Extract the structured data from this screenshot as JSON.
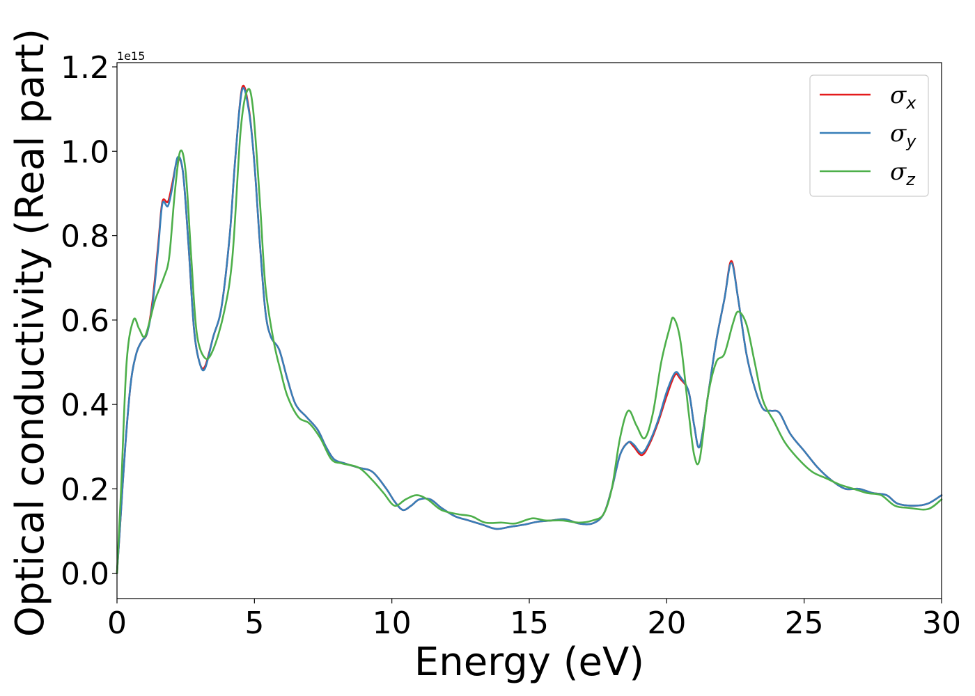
{
  "chart_data": {
    "type": "line",
    "title": "",
    "xlabel": "Energy (eV)",
    "ylabel": "Optical conductivity (Real part)",
    "y_offset_text": "1e15",
    "xlim": [
      0,
      30
    ],
    "ylim": [
      -0.06,
      1.21
    ],
    "x_ticks": [
      0,
      5,
      10,
      15,
      20,
      25,
      30
    ],
    "x_tick_labels": [
      "0",
      "5",
      "10",
      "15",
      "20",
      "25",
      "30"
    ],
    "y_ticks": [
      0.0,
      0.2,
      0.4,
      0.6,
      0.8,
      1.0,
      1.2
    ],
    "y_tick_labels": [
      "0.0",
      "0.2",
      "0.4",
      "0.6",
      "0.8",
      "1.0",
      "1.2"
    ],
    "grid": false,
    "legend": {
      "position": "top-right",
      "entries": [
        {
          "symbol": "σ",
          "subscript": "x"
        },
        {
          "symbol": "σ",
          "subscript": "y"
        },
        {
          "symbol": "σ",
          "subscript": "z"
        }
      ]
    },
    "series": [
      {
        "color": "#e41a1c",
        "points": [
          [
            0,
            0
          ],
          [
            0.1,
            0.1
          ],
          [
            0.3,
            0.3
          ],
          [
            0.5,
            0.45
          ],
          [
            0.7,
            0.52
          ],
          [
            0.9,
            0.55
          ],
          [
            1.1,
            0.57
          ],
          [
            1.3,
            0.65
          ],
          [
            1.5,
            0.78
          ],
          [
            1.65,
            0.88
          ],
          [
            1.85,
            0.88
          ],
          [
            2.0,
            0.92
          ],
          [
            2.2,
            0.98
          ],
          [
            2.4,
            0.95
          ],
          [
            2.6,
            0.78
          ],
          [
            2.8,
            0.58
          ],
          [
            3.0,
            0.5
          ],
          [
            3.2,
            0.49
          ],
          [
            3.5,
            0.56
          ],
          [
            3.8,
            0.63
          ],
          [
            4.1,
            0.8
          ],
          [
            4.3,
            0.98
          ],
          [
            4.55,
            1.15
          ],
          [
            4.8,
            1.1
          ],
          [
            5.0,
            0.97
          ],
          [
            5.2,
            0.78
          ],
          [
            5.4,
            0.62
          ],
          [
            5.6,
            0.56
          ],
          [
            5.9,
            0.53
          ],
          [
            6.2,
            0.46
          ],
          [
            6.5,
            0.4
          ],
          [
            6.9,
            0.37
          ],
          [
            7.3,
            0.34
          ],
          [
            7.6,
            0.3
          ],
          [
            7.9,
            0.27
          ],
          [
            8.3,
            0.26
          ],
          [
            8.8,
            0.25
          ],
          [
            9.3,
            0.24
          ],
          [
            9.8,
            0.2
          ],
          [
            10.1,
            0.17
          ],
          [
            10.4,
            0.15
          ],
          [
            10.7,
            0.16
          ],
          [
            11.0,
            0.175
          ],
          [
            11.4,
            0.175
          ],
          [
            11.8,
            0.155
          ],
          [
            12.3,
            0.135
          ],
          [
            12.8,
            0.125
          ],
          [
            13.3,
            0.115
          ],
          [
            13.8,
            0.105
          ],
          [
            14.3,
            0.11
          ],
          [
            14.8,
            0.115
          ],
          [
            15.3,
            0.122
          ],
          [
            15.8,
            0.125
          ],
          [
            16.3,
            0.128
          ],
          [
            16.8,
            0.118
          ],
          [
            17.3,
            0.118
          ],
          [
            17.7,
            0.14
          ],
          [
            18.0,
            0.2
          ],
          [
            18.3,
            0.28
          ],
          [
            18.6,
            0.31
          ],
          [
            18.8,
            0.3
          ],
          [
            19.1,
            0.28
          ],
          [
            19.4,
            0.31
          ],
          [
            19.7,
            0.36
          ],
          [
            20.0,
            0.42
          ],
          [
            20.3,
            0.47
          ],
          [
            20.5,
            0.46
          ],
          [
            20.8,
            0.43
          ],
          [
            21.0,
            0.35
          ],
          [
            21.2,
            0.3
          ],
          [
            21.5,
            0.42
          ],
          [
            21.8,
            0.55
          ],
          [
            22.1,
            0.65
          ],
          [
            22.35,
            0.74
          ],
          [
            22.6,
            0.65
          ],
          [
            22.9,
            0.52
          ],
          [
            23.2,
            0.44
          ],
          [
            23.5,
            0.39
          ],
          [
            23.8,
            0.385
          ],
          [
            24.1,
            0.38
          ],
          [
            24.5,
            0.33
          ],
          [
            25.0,
            0.29
          ],
          [
            25.5,
            0.25
          ],
          [
            26.0,
            0.22
          ],
          [
            26.5,
            0.2
          ],
          [
            27.0,
            0.2
          ],
          [
            27.5,
            0.19
          ],
          [
            28.0,
            0.185
          ],
          [
            28.4,
            0.165
          ],
          [
            29.0,
            0.16
          ],
          [
            29.5,
            0.165
          ],
          [
            30.0,
            0.185
          ]
        ]
      },
      {
        "color": "#377eb8",
        "points": [
          [
            0,
            0
          ],
          [
            0.1,
            0.1
          ],
          [
            0.3,
            0.3
          ],
          [
            0.5,
            0.45
          ],
          [
            0.7,
            0.52
          ],
          [
            0.9,
            0.55
          ],
          [
            1.1,
            0.57
          ],
          [
            1.3,
            0.64
          ],
          [
            1.5,
            0.77
          ],
          [
            1.65,
            0.875
          ],
          [
            1.85,
            0.87
          ],
          [
            2.0,
            0.91
          ],
          [
            2.2,
            0.985
          ],
          [
            2.4,
            0.95
          ],
          [
            2.6,
            0.78
          ],
          [
            2.8,
            0.58
          ],
          [
            3.0,
            0.5
          ],
          [
            3.2,
            0.485
          ],
          [
            3.5,
            0.56
          ],
          [
            3.8,
            0.63
          ],
          [
            4.1,
            0.8
          ],
          [
            4.3,
            0.98
          ],
          [
            4.55,
            1.145
          ],
          [
            4.8,
            1.095
          ],
          [
            5.0,
            0.97
          ],
          [
            5.2,
            0.78
          ],
          [
            5.4,
            0.62
          ],
          [
            5.6,
            0.56
          ],
          [
            5.9,
            0.53
          ],
          [
            6.2,
            0.46
          ],
          [
            6.5,
            0.4
          ],
          [
            6.9,
            0.37
          ],
          [
            7.3,
            0.34
          ],
          [
            7.6,
            0.3
          ],
          [
            7.9,
            0.27
          ],
          [
            8.3,
            0.26
          ],
          [
            8.8,
            0.25
          ],
          [
            9.3,
            0.24
          ],
          [
            9.8,
            0.2
          ],
          [
            10.1,
            0.17
          ],
          [
            10.4,
            0.15
          ],
          [
            10.7,
            0.16
          ],
          [
            11.0,
            0.175
          ],
          [
            11.4,
            0.175
          ],
          [
            11.8,
            0.155
          ],
          [
            12.3,
            0.135
          ],
          [
            12.8,
            0.125
          ],
          [
            13.3,
            0.115
          ],
          [
            13.8,
            0.105
          ],
          [
            14.3,
            0.11
          ],
          [
            14.8,
            0.115
          ],
          [
            15.3,
            0.122
          ],
          [
            15.8,
            0.125
          ],
          [
            16.3,
            0.128
          ],
          [
            16.8,
            0.118
          ],
          [
            17.3,
            0.118
          ],
          [
            17.7,
            0.14
          ],
          [
            18.0,
            0.2
          ],
          [
            18.3,
            0.28
          ],
          [
            18.6,
            0.31
          ],
          [
            18.8,
            0.305
          ],
          [
            19.1,
            0.285
          ],
          [
            19.4,
            0.315
          ],
          [
            19.7,
            0.365
          ],
          [
            20.0,
            0.43
          ],
          [
            20.3,
            0.475
          ],
          [
            20.5,
            0.465
          ],
          [
            20.8,
            0.43
          ],
          [
            21.0,
            0.35
          ],
          [
            21.2,
            0.3
          ],
          [
            21.5,
            0.42
          ],
          [
            21.8,
            0.55
          ],
          [
            22.1,
            0.65
          ],
          [
            22.35,
            0.735
          ],
          [
            22.6,
            0.65
          ],
          [
            22.9,
            0.52
          ],
          [
            23.2,
            0.44
          ],
          [
            23.5,
            0.39
          ],
          [
            23.8,
            0.385
          ],
          [
            24.1,
            0.38
          ],
          [
            24.5,
            0.33
          ],
          [
            25.0,
            0.29
          ],
          [
            25.5,
            0.25
          ],
          [
            26.0,
            0.22
          ],
          [
            26.5,
            0.2
          ],
          [
            27.0,
            0.2
          ],
          [
            27.5,
            0.19
          ],
          [
            28.0,
            0.185
          ],
          [
            28.4,
            0.165
          ],
          [
            29.0,
            0.16
          ],
          [
            29.5,
            0.165
          ],
          [
            30.0,
            0.185
          ]
        ]
      },
      {
        "color": "#4daf4a",
        "points": [
          [
            0,
            0
          ],
          [
            0.15,
            0.2
          ],
          [
            0.35,
            0.5
          ],
          [
            0.6,
            0.6
          ],
          [
            0.8,
            0.58
          ],
          [
            1.0,
            0.56
          ],
          [
            1.2,
            0.6
          ],
          [
            1.4,
            0.65
          ],
          [
            1.7,
            0.7
          ],
          [
            1.9,
            0.75
          ],
          [
            2.1,
            0.9
          ],
          [
            2.3,
            1.0
          ],
          [
            2.5,
            0.95
          ],
          [
            2.7,
            0.75
          ],
          [
            2.9,
            0.57
          ],
          [
            3.2,
            0.51
          ],
          [
            3.5,
            0.53
          ],
          [
            3.9,
            0.62
          ],
          [
            4.2,
            0.75
          ],
          [
            4.5,
            1.05
          ],
          [
            4.75,
            1.145
          ],
          [
            4.95,
            1.1
          ],
          [
            5.2,
            0.88
          ],
          [
            5.4,
            0.68
          ],
          [
            5.7,
            0.55
          ],
          [
            5.95,
            0.48
          ],
          [
            6.2,
            0.42
          ],
          [
            6.6,
            0.37
          ],
          [
            7.0,
            0.355
          ],
          [
            7.4,
            0.32
          ],
          [
            7.8,
            0.27
          ],
          [
            8.2,
            0.26
          ],
          [
            8.8,
            0.25
          ],
          [
            9.3,
            0.22
          ],
          [
            9.7,
            0.19
          ],
          [
            10.1,
            0.16
          ],
          [
            10.5,
            0.175
          ],
          [
            10.9,
            0.185
          ],
          [
            11.3,
            0.175
          ],
          [
            11.8,
            0.15
          ],
          [
            12.4,
            0.14
          ],
          [
            12.9,
            0.135
          ],
          [
            13.4,
            0.12
          ],
          [
            14.0,
            0.12
          ],
          [
            14.5,
            0.118
          ],
          [
            15.1,
            0.13
          ],
          [
            15.6,
            0.125
          ],
          [
            16.2,
            0.125
          ],
          [
            16.8,
            0.12
          ],
          [
            17.3,
            0.125
          ],
          [
            17.7,
            0.14
          ],
          [
            18.0,
            0.2
          ],
          [
            18.3,
            0.32
          ],
          [
            18.6,
            0.385
          ],
          [
            18.9,
            0.35
          ],
          [
            19.2,
            0.32
          ],
          [
            19.5,
            0.38
          ],
          [
            19.8,
            0.5
          ],
          [
            20.1,
            0.58
          ],
          [
            20.25,
            0.605
          ],
          [
            20.5,
            0.55
          ],
          [
            20.8,
            0.38
          ],
          [
            21.0,
            0.28
          ],
          [
            21.2,
            0.27
          ],
          [
            21.5,
            0.42
          ],
          [
            21.8,
            0.5
          ],
          [
            22.1,
            0.52
          ],
          [
            22.4,
            0.59
          ],
          [
            22.6,
            0.62
          ],
          [
            22.9,
            0.59
          ],
          [
            23.2,
            0.5
          ],
          [
            23.5,
            0.41
          ],
          [
            23.9,
            0.36
          ],
          [
            24.3,
            0.31
          ],
          [
            24.8,
            0.27
          ],
          [
            25.3,
            0.24
          ],
          [
            25.8,
            0.225
          ],
          [
            26.3,
            0.21
          ],
          [
            26.8,
            0.2
          ],
          [
            27.3,
            0.19
          ],
          [
            27.8,
            0.185
          ],
          [
            28.3,
            0.16
          ],
          [
            28.8,
            0.155
          ],
          [
            29.5,
            0.152
          ],
          [
            30.0,
            0.175
          ]
        ]
      }
    ]
  }
}
